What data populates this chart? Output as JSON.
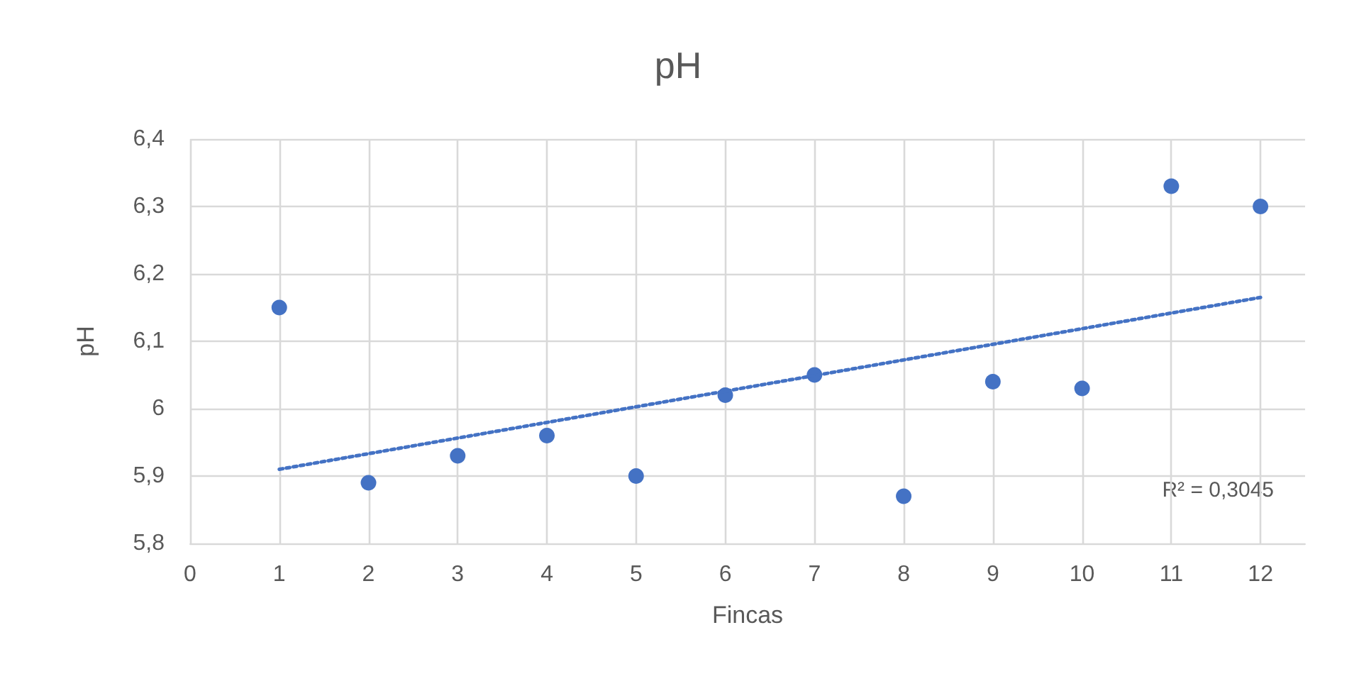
{
  "chart_data": {
    "type": "scatter",
    "title": "pH",
    "xlabel": "Fincas",
    "ylabel": "pH",
    "x": [
      1,
      2,
      3,
      4,
      5,
      6,
      7,
      8,
      9,
      10,
      11,
      12
    ],
    "series": [
      {
        "color": "#4472c4",
        "marker": "circle",
        "values": [
          6.15,
          5.89,
          5.93,
          5.96,
          5.9,
          6.02,
          6.05,
          5.87,
          6.04,
          6.03,
          6.33,
          6.3
        ]
      },
      {
        "type": "line",
        "color": "#4472c4",
        "line_style": "dotted",
        "marker": "none",
        "x": [
          1,
          12
        ],
        "values": [
          5.91,
          6.165
        ]
      }
    ],
    "xlim": [
      0,
      12.5
    ],
    "xticks": [
      0,
      1,
      2,
      3,
      4,
      5,
      6,
      7,
      8,
      9,
      10,
      11,
      12
    ],
    "ylim": [
      5.8,
      6.4
    ],
    "yticks": [
      {
        "value": 5.8,
        "label": "5,8"
      },
      {
        "value": 5.9,
        "label": "5,9"
      },
      6,
      {
        "value": 6.1,
        "label": "6,1"
      },
      {
        "value": 6.2,
        "label": "6,2"
      },
      {
        "value": 6.3,
        "label": "6,3"
      },
      {
        "value": 6.4,
        "label": "6,4"
      }
    ],
    "grid": true,
    "annotations": [
      "R² = 0,3045"
    ]
  }
}
